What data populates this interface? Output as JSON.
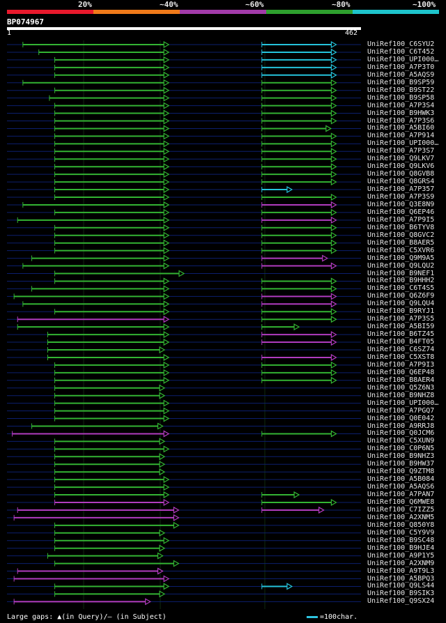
{
  "legend": {
    "labels": [
      "20%",
      "~40%",
      "~60%",
      "~80%",
      "~100%"
    ],
    "colors": [
      "#e8192c",
      "#f07a1a",
      "#a23ba9",
      "#2ea02e",
      "#1ec4cc"
    ]
  },
  "query": {
    "id": "BP074967",
    "start": "1",
    "end": "462"
  },
  "footer": {
    "gaps_text": "Large gaps: ▲(in Query)/— (in Subject)",
    "scale_text": "=100char."
  },
  "chart_data": {
    "type": "alignment-map",
    "query_length": 462,
    "identity_bins": [
      "20%",
      "~40%",
      "~60%",
      "~80%",
      "~100%"
    ],
    "rows": [
      {
        "name": "UniRef100_C6SYU2",
        "segments": [
          {
            "s": 45,
            "e": 457,
            "c": "g"
          },
          {
            "s": 720,
            "e": 930,
            "c": "c"
          }
        ]
      },
      {
        "name": "UniRef100_C6T452",
        "segments": [
          {
            "s": 90,
            "e": 457,
            "c": "g"
          },
          {
            "s": 720,
            "e": 930,
            "c": "c"
          }
        ]
      },
      {
        "name": "UniRef100_UPI000…",
        "segments": [
          {
            "s": 135,
            "e": 457,
            "c": "g"
          },
          {
            "s": 720,
            "e": 930,
            "c": "c"
          }
        ]
      },
      {
        "name": "UniRef100_A7P3T0",
        "segments": [
          {
            "s": 135,
            "e": 457,
            "c": "g"
          },
          {
            "s": 720,
            "e": 930,
            "c": "c"
          }
        ]
      },
      {
        "name": "UniRef100_A5AQS9",
        "segments": [
          {
            "s": 135,
            "e": 457,
            "c": "g"
          },
          {
            "s": 720,
            "e": 930,
            "c": "c"
          }
        ]
      },
      {
        "name": "UniRef100_B9SP59",
        "segments": [
          {
            "s": 45,
            "e": 457,
            "c": "g"
          },
          {
            "s": 720,
            "e": 930,
            "c": "g"
          }
        ]
      },
      {
        "name": "UniRef100_B9ST22",
        "segments": [
          {
            "s": 135,
            "e": 457,
            "c": "g"
          },
          {
            "s": 720,
            "e": 930,
            "c": "g"
          }
        ]
      },
      {
        "name": "UniRef100_B9SP58",
        "segments": [
          {
            "s": 120,
            "e": 457,
            "c": "g"
          },
          {
            "s": 720,
            "e": 930,
            "c": "g"
          }
        ]
      },
      {
        "name": "UniRef100_A7P3S4",
        "segments": [
          {
            "s": 135,
            "e": 457,
            "c": "g"
          },
          {
            "s": 720,
            "e": 930,
            "c": "g"
          }
        ]
      },
      {
        "name": "UniRef100_B9HWK3",
        "segments": [
          {
            "s": 135,
            "e": 457,
            "c": "g"
          },
          {
            "s": 720,
            "e": 930,
            "c": "g"
          }
        ]
      },
      {
        "name": "UniRef100_A7P3S6",
        "segments": [
          {
            "s": 135,
            "e": 457,
            "c": "g"
          },
          {
            "s": 720,
            "e": 930,
            "c": "g"
          }
        ]
      },
      {
        "name": "UniRef100_A5BI60",
        "segments": [
          {
            "s": 135,
            "e": 457,
            "c": "g"
          },
          {
            "s": 720,
            "e": 915,
            "c": "g"
          }
        ]
      },
      {
        "name": "UniRef100_A7P914",
        "segments": [
          {
            "s": 135,
            "e": 457,
            "c": "g"
          },
          {
            "s": 720,
            "e": 930,
            "c": "g"
          }
        ]
      },
      {
        "name": "UniRef100_UPI000…",
        "segments": [
          {
            "s": 135,
            "e": 457,
            "c": "g"
          },
          {
            "s": 720,
            "e": 930,
            "c": "g"
          }
        ]
      },
      {
        "name": "UniRef100_A7P3S7",
        "segments": [
          {
            "s": 135,
            "e": 457,
            "c": "g"
          },
          {
            "s": 720,
            "e": 930,
            "c": "g"
          }
        ]
      },
      {
        "name": "UniRef100_Q9LKV7",
        "segments": [
          {
            "s": 135,
            "e": 457,
            "c": "g"
          },
          {
            "s": 720,
            "e": 930,
            "c": "g"
          }
        ]
      },
      {
        "name": "UniRef100_Q9LKV6",
        "segments": [
          {
            "s": 135,
            "e": 457,
            "c": "g"
          },
          {
            "s": 720,
            "e": 930,
            "c": "g"
          }
        ]
      },
      {
        "name": "UniRef100_Q8GVB8",
        "segments": [
          {
            "s": 135,
            "e": 457,
            "c": "g"
          },
          {
            "s": 720,
            "e": 930,
            "c": "g"
          }
        ]
      },
      {
        "name": "UniRef100_Q8GRS4",
        "segments": [
          {
            "s": 135,
            "e": 457,
            "c": "g"
          },
          {
            "s": 720,
            "e": 930,
            "c": "g"
          }
        ]
      },
      {
        "name": "UniRef100_A7P357",
        "segments": [
          {
            "s": 135,
            "e": 457,
            "c": "g"
          },
          {
            "s": 720,
            "e": 805,
            "c": "c"
          }
        ]
      },
      {
        "name": "UniRef100_A7P3S9",
        "segments": [
          {
            "s": 135,
            "e": 457,
            "c": "g"
          },
          {
            "s": 720,
            "e": 930,
            "c": "g"
          }
        ]
      },
      {
        "name": "UniRef100_Q3E8N9",
        "segments": [
          {
            "s": 45,
            "e": 457,
            "c": "g"
          },
          {
            "s": 720,
            "e": 930,
            "c": "p"
          }
        ]
      },
      {
        "name": "UniRef100_Q6EP46",
        "segments": [
          {
            "s": 135,
            "e": 457,
            "c": "g"
          },
          {
            "s": 720,
            "e": 930,
            "c": "g"
          }
        ]
      },
      {
        "name": "UniRef100_A7P9I5",
        "segments": [
          {
            "s": 30,
            "e": 457,
            "c": "g"
          },
          {
            "s": 720,
            "e": 930,
            "c": "p"
          }
        ]
      },
      {
        "name": "UniRef100_B6TYV8",
        "segments": [
          {
            "s": 135,
            "e": 457,
            "c": "g"
          },
          {
            "s": 720,
            "e": 930,
            "c": "g"
          }
        ]
      },
      {
        "name": "UniRef100_Q8GVC2",
        "segments": [
          {
            "s": 135,
            "e": 457,
            "c": "g"
          },
          {
            "s": 720,
            "e": 930,
            "c": "g"
          }
        ]
      },
      {
        "name": "UniRef100_B8AER5",
        "segments": [
          {
            "s": 135,
            "e": 457,
            "c": "g"
          },
          {
            "s": 720,
            "e": 930,
            "c": "g"
          }
        ]
      },
      {
        "name": "UniRef100_C5XVR6",
        "segments": [
          {
            "s": 135,
            "e": 457,
            "c": "g"
          },
          {
            "s": 720,
            "e": 930,
            "c": "g"
          }
        ]
      },
      {
        "name": "UniRef100_Q9M9A5",
        "segments": [
          {
            "s": 70,
            "e": 457,
            "c": "g"
          },
          {
            "s": 720,
            "e": 905,
            "c": "p"
          }
        ]
      },
      {
        "name": "UniRef100_Q9LQU2",
        "segments": [
          {
            "s": 45,
            "e": 457,
            "c": "g"
          },
          {
            "s": 720,
            "e": 930,
            "c": "p"
          }
        ]
      },
      {
        "name": "UniRef100_B9NEF1",
        "segments": [
          {
            "s": 135,
            "e": 500,
            "c": "g"
          }
        ]
      },
      {
        "name": "UniRef100_B9HHH2",
        "segments": [
          {
            "s": 135,
            "e": 457,
            "c": "g"
          },
          {
            "s": 720,
            "e": 930,
            "c": "g"
          }
        ]
      },
      {
        "name": "UniRef100_C6T4S5",
        "segments": [
          {
            "s": 70,
            "e": 457,
            "c": "g"
          },
          {
            "s": 720,
            "e": 930,
            "c": "g"
          }
        ]
      },
      {
        "name": "UniRef100_Q6Z6F9",
        "segments": [
          {
            "s": 20,
            "e": 457,
            "c": "g"
          },
          {
            "s": 720,
            "e": 930,
            "c": "p"
          }
        ]
      },
      {
        "name": "UniRef100_Q9LQU4",
        "segments": [
          {
            "s": 45,
            "e": 457,
            "c": "g"
          },
          {
            "s": 720,
            "e": 930,
            "c": "p"
          }
        ]
      },
      {
        "name": "UniRef100_B9RYJ1",
        "segments": [
          {
            "s": 135,
            "e": 457,
            "c": "g"
          },
          {
            "s": 720,
            "e": 930,
            "c": "g"
          }
        ]
      },
      {
        "name": "UniRef100_A7P3S5",
        "segments": [
          {
            "s": 30,
            "e": 457,
            "c": "p"
          },
          {
            "s": 720,
            "e": 930,
            "c": "g"
          }
        ]
      },
      {
        "name": "UniRef100_A5BI59",
        "segments": [
          {
            "s": 30,
            "e": 457,
            "c": "g"
          },
          {
            "s": 720,
            "e": 825,
            "c": "g"
          }
        ]
      },
      {
        "name": "UniRef100_B6TZ45",
        "segments": [
          {
            "s": 115,
            "e": 457,
            "c": "g"
          },
          {
            "s": 720,
            "e": 930,
            "c": "p"
          }
        ]
      },
      {
        "name": "UniRef100_B4FT05",
        "segments": [
          {
            "s": 115,
            "e": 457,
            "c": "g"
          },
          {
            "s": 720,
            "e": 930,
            "c": "p"
          }
        ]
      },
      {
        "name": "UniRef100_C6SZ74",
        "segments": [
          {
            "s": 115,
            "e": 445,
            "c": "g"
          }
        ]
      },
      {
        "name": "UniRef100_C5XST8",
        "segments": [
          {
            "s": 115,
            "e": 457,
            "c": "g"
          },
          {
            "s": 720,
            "e": 930,
            "c": "p"
          }
        ]
      },
      {
        "name": "UniRef100_A7P9I3",
        "segments": [
          {
            "s": 135,
            "e": 457,
            "c": "g"
          },
          {
            "s": 720,
            "e": 930,
            "c": "g"
          }
        ]
      },
      {
        "name": "UniRef100_Q6EP48",
        "segments": [
          {
            "s": 135,
            "e": 457,
            "c": "g"
          },
          {
            "s": 720,
            "e": 930,
            "c": "g"
          }
        ]
      },
      {
        "name": "UniRef100_B8AER4",
        "segments": [
          {
            "s": 135,
            "e": 457,
            "c": "g"
          },
          {
            "s": 720,
            "e": 930,
            "c": "g"
          }
        ]
      },
      {
        "name": "UniRef100_Q5Z6N3",
        "segments": [
          {
            "s": 135,
            "e": 445,
            "c": "g"
          }
        ]
      },
      {
        "name": "UniRef100_B9NHZ8",
        "segments": [
          {
            "s": 135,
            "e": 445,
            "c": "g"
          }
        ]
      },
      {
        "name": "UniRef100_UPI000…",
        "segments": [
          {
            "s": 135,
            "e": 457,
            "c": "g"
          }
        ]
      },
      {
        "name": "UniRef100_A7PGQ7",
        "segments": [
          {
            "s": 135,
            "e": 457,
            "c": "g"
          }
        ]
      },
      {
        "name": "UniRef100_Q0E042",
        "segments": [
          {
            "s": 135,
            "e": 457,
            "c": "g"
          }
        ]
      },
      {
        "name": "UniRef100_A9RRJ8",
        "segments": [
          {
            "s": 70,
            "e": 440,
            "c": "g"
          }
        ]
      },
      {
        "name": "UniRef100_Q0JCM6",
        "segments": [
          {
            "s": 15,
            "e": 457,
            "c": "p"
          },
          {
            "s": 720,
            "e": 930,
            "c": "g"
          }
        ]
      },
      {
        "name": "UniRef100_C5XUN9",
        "segments": [
          {
            "s": 135,
            "e": 445,
            "c": "g"
          }
        ]
      },
      {
        "name": "UniRef100_C0P6N5",
        "segments": [
          {
            "s": 135,
            "e": 457,
            "c": "g"
          }
        ]
      },
      {
        "name": "UniRef100_B9NHZ3",
        "segments": [
          {
            "s": 135,
            "e": 445,
            "c": "g"
          }
        ]
      },
      {
        "name": "UniRef100_B9HW37",
        "segments": [
          {
            "s": 135,
            "e": 445,
            "c": "g"
          }
        ]
      },
      {
        "name": "UniRef100_Q9ZTM8",
        "segments": [
          {
            "s": 135,
            "e": 445,
            "c": "g"
          }
        ]
      },
      {
        "name": "UniRef100_A5B084",
        "segments": [
          {
            "s": 135,
            "e": 457,
            "c": "g"
          }
        ]
      },
      {
        "name": "UniRef100_A5AQS6",
        "segments": [
          {
            "s": 135,
            "e": 457,
            "c": "g"
          }
        ]
      },
      {
        "name": "UniRef100_A7PAN7",
        "segments": [
          {
            "s": 135,
            "e": 457,
            "c": "g"
          },
          {
            "s": 720,
            "e": 825,
            "c": "g"
          }
        ]
      },
      {
        "name": "UniRef100_Q6MWE8",
        "segments": [
          {
            "s": 135,
            "e": 457,
            "c": "p"
          },
          {
            "s": 720,
            "e": 930,
            "c": "g"
          }
        ]
      },
      {
        "name": "UniRef100_C7IZZ5",
        "segments": [
          {
            "s": 30,
            "e": 485,
            "c": "p"
          },
          {
            "s": 720,
            "e": 895,
            "c": "p"
          }
        ]
      },
      {
        "name": "UniRef100_A2XNM5",
        "segments": [
          {
            "s": 20,
            "e": 485,
            "c": "p"
          }
        ]
      },
      {
        "name": "UniRef100_Q850Y8",
        "segments": [
          {
            "s": 135,
            "e": 485,
            "c": "g"
          }
        ]
      },
      {
        "name": "UniRef100_C5Y9V9",
        "segments": [
          {
            "s": 135,
            "e": 445,
            "c": "g"
          }
        ]
      },
      {
        "name": "UniRef100_B9SC48",
        "segments": [
          {
            "s": 135,
            "e": 457,
            "c": "g"
          }
        ]
      },
      {
        "name": "UniRef100_B9HJE4",
        "segments": [
          {
            "s": 135,
            "e": 445,
            "c": "g"
          }
        ]
      },
      {
        "name": "UniRef100_A9P1Y5",
        "segments": [
          {
            "s": 115,
            "e": 440,
            "c": "g"
          }
        ]
      },
      {
        "name": "UniRef100_A2XNM9",
        "segments": [
          {
            "s": 135,
            "e": 485,
            "c": "g"
          }
        ]
      },
      {
        "name": "UniRef100_A9T9L3",
        "segments": [
          {
            "s": 30,
            "e": 440,
            "c": "p"
          }
        ]
      },
      {
        "name": "UniRef100_A5BPQ3",
        "segments": [
          {
            "s": 20,
            "e": 457,
            "c": "p"
          }
        ]
      },
      {
        "name": "UniRef100_Q9LS44",
        "segments": [
          {
            "s": 135,
            "e": 457,
            "c": "g"
          },
          {
            "s": 720,
            "e": 805,
            "c": "c"
          }
        ]
      },
      {
        "name": "UniRef100_B9SIK3",
        "segments": [
          {
            "s": 135,
            "e": 445,
            "c": "g"
          }
        ]
      },
      {
        "name": "UniRef100_Q9SX24",
        "segments": [
          {
            "s": 20,
            "e": 405,
            "c": "p"
          }
        ]
      }
    ]
  }
}
